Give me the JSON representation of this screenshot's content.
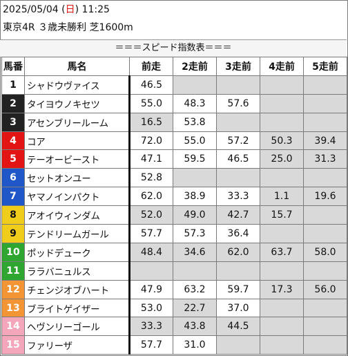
{
  "header": {
    "date": "2025/05/04",
    "dow_open": " (",
    "dow": "日",
    "dow_close": ") ",
    "time": "11:25",
    "race": "東京4R ３歳未勝利 芝1600m"
  },
  "section_title": "＝＝＝スピード指数表＝＝＝",
  "columns": [
    "馬番",
    "馬名",
    "前走",
    "2走前",
    "3走前",
    "4走前",
    "5走前"
  ],
  "colors": {
    "frame1": "#ffffff",
    "frame2": "#222222",
    "frame3": "#e31414",
    "frame4": "#1f56c8",
    "frame5": "#f0cd1b",
    "frame6": "#2fa62f",
    "frame7": "#f39435",
    "frame8": "#f4a7bb",
    "grey_cell": "#d9d9d9"
  },
  "rows": [
    {
      "no": "1",
      "name": "シャドウヴァイス",
      "frame": 1,
      "vals": [
        "46.5",
        "",
        "",
        "",
        ""
      ]
    },
    {
      "no": "2",
      "name": "タイヨウノキセツ",
      "frame": 2,
      "vals": [
        "55.0",
        "48.3",
        "57.6",
        "",
        ""
      ]
    },
    {
      "no": "3",
      "name": "アセンブリールーム",
      "frame": 2,
      "vals": [
        "16.5",
        "53.8",
        "",
        "",
        ""
      ]
    },
    {
      "no": "4",
      "name": "コア",
      "frame": 3,
      "vals": [
        "72.0",
        "55.0",
        "57.2",
        "50.3",
        "39.4"
      ]
    },
    {
      "no": "5",
      "name": "テーオービースト",
      "frame": 3,
      "vals": [
        "47.1",
        "59.5",
        "46.5",
        "25.0",
        "31.3"
      ]
    },
    {
      "no": "6",
      "name": "セットオンユー",
      "frame": 4,
      "vals": [
        "52.8",
        "",
        "",
        "",
        ""
      ]
    },
    {
      "no": "7",
      "name": "ヤマノインパクト",
      "frame": 4,
      "vals": [
        "62.0",
        "38.9",
        "33.3",
        "1.1",
        "19.6"
      ]
    },
    {
      "no": "8",
      "name": "アオイウィンダム",
      "frame": 5,
      "vals": [
        "52.0",
        "49.0",
        "42.7",
        "15.7",
        ""
      ]
    },
    {
      "no": "9",
      "name": "テンドリームガール",
      "frame": 5,
      "vals": [
        "57.7",
        "57.3",
        "36.4",
        "",
        ""
      ]
    },
    {
      "no": "10",
      "name": "ポッドデューク",
      "frame": 6,
      "vals": [
        "48.4",
        "34.6",
        "62.0",
        "63.7",
        "58.0"
      ]
    },
    {
      "no": "11",
      "name": "ララバニュルス",
      "frame": 6,
      "vals": [
        "",
        "",
        "",
        "",
        ""
      ]
    },
    {
      "no": "12",
      "name": "チェンジオブハート",
      "frame": 7,
      "vals": [
        "47.9",
        "63.2",
        "59.7",
        "17.3",
        "56.0"
      ]
    },
    {
      "no": "13",
      "name": "ブライトゲイザー",
      "frame": 7,
      "vals": [
        "53.0",
        "22.7",
        "37.0",
        "",
        ""
      ]
    },
    {
      "no": "14",
      "name": "ヘヴンリーゴール",
      "frame": 8,
      "vals": [
        "33.3",
        "43.8",
        "44.5",
        "",
        ""
      ]
    },
    {
      "no": "15",
      "name": "ファリーザ",
      "frame": 8,
      "vals": [
        "57.7",
        "31.0",
        "",
        "",
        ""
      ]
    }
  ]
}
